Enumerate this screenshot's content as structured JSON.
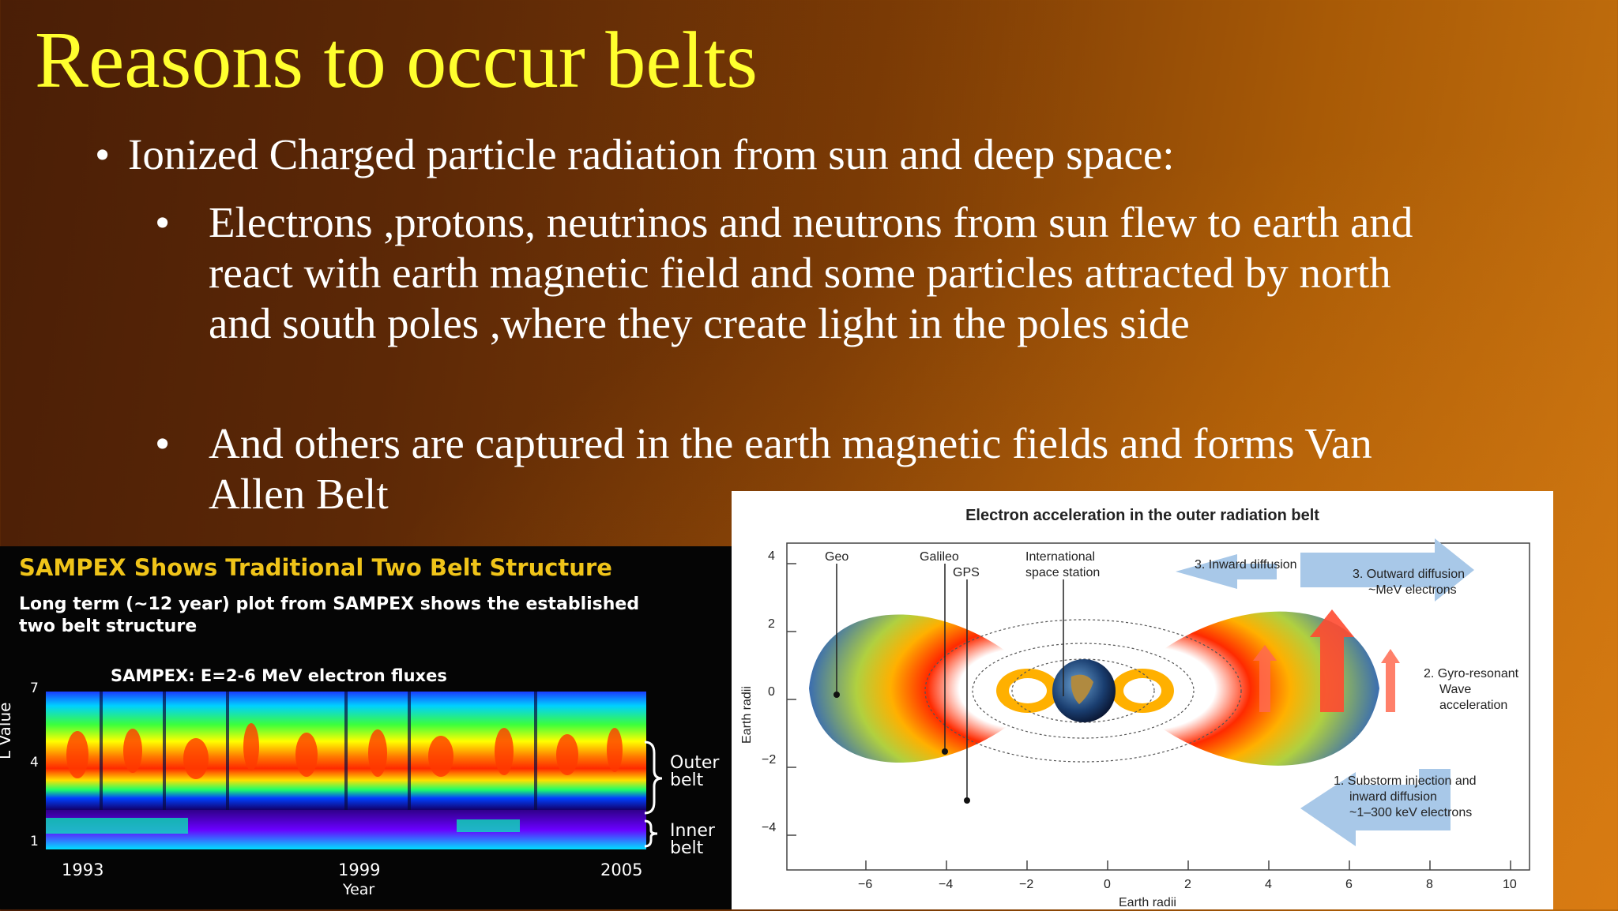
{
  "slide": {
    "title": "Reasons to occur belts",
    "bullet_main": "Ionized Charged particle radiation from sun and deep space:",
    "sub_bullets": [
      "Electrons ,protons, neutrinos and neutrons from sun flew to earth  and react with earth magnetic field and some particles attracted by north and south poles ,where they create light in the poles side",
      "And others are captured in the earth magnetic fields and forms Van Allen Belt"
    ],
    "bullet_glyph": "•"
  },
  "sampex": {
    "title": "SAMPEX Shows Traditional Two Belt Structure",
    "desc": "Long term (~12 year) plot from SAMPEX shows the established two belt structure",
    "subtitle": "SAMPEX: E=2-6 MeV electron fluxes",
    "ylabel": "L Value",
    "xlabel": "Year",
    "yticks": [
      "7",
      "4",
      "1"
    ],
    "xticks": [
      "1993",
      "1999",
      "2005"
    ],
    "outer_belt": "Outer belt",
    "inner_belt": "Inner belt"
  },
  "chart_data": {
    "type": "heatmap",
    "title": "SAMPEX: E=2-6 MeV electron fluxes",
    "xlabel": "Year",
    "ylabel": "L Value",
    "x_ticks": [
      1993,
      1999,
      2005
    ],
    "y_ticks": [
      1,
      4,
      7
    ],
    "ylim": [
      1,
      7
    ]
  },
  "diagram": {
    "title": "Electron acceleration in the outer radiation belt",
    "ylabel": "Earth radii",
    "xlabel": "Earth radii",
    "xticks": [
      "−6",
      "−4",
      "−2",
      "0",
      "2",
      "4",
      "6",
      "8",
      "10"
    ],
    "yticks": [
      "4",
      "2",
      "0",
      "−2",
      "−4"
    ],
    "labels": {
      "geo": "Geo",
      "galileo": "Galileo",
      "gps": "GPS",
      "iss_1": "International",
      "iss_2": "space station",
      "inward": "3. Inward diffusion",
      "outward_1": "3. Outward diffusion",
      "outward_2": "~MeV electrons",
      "gyro_1": "2. Gyro-resonant",
      "gyro_2": "Wave",
      "gyro_3": "acceleration",
      "substorm_1": "1. Substorm injection and",
      "substorm_2": "inward diffusion",
      "substorm_3": "~1–300 keV electrons"
    }
  }
}
